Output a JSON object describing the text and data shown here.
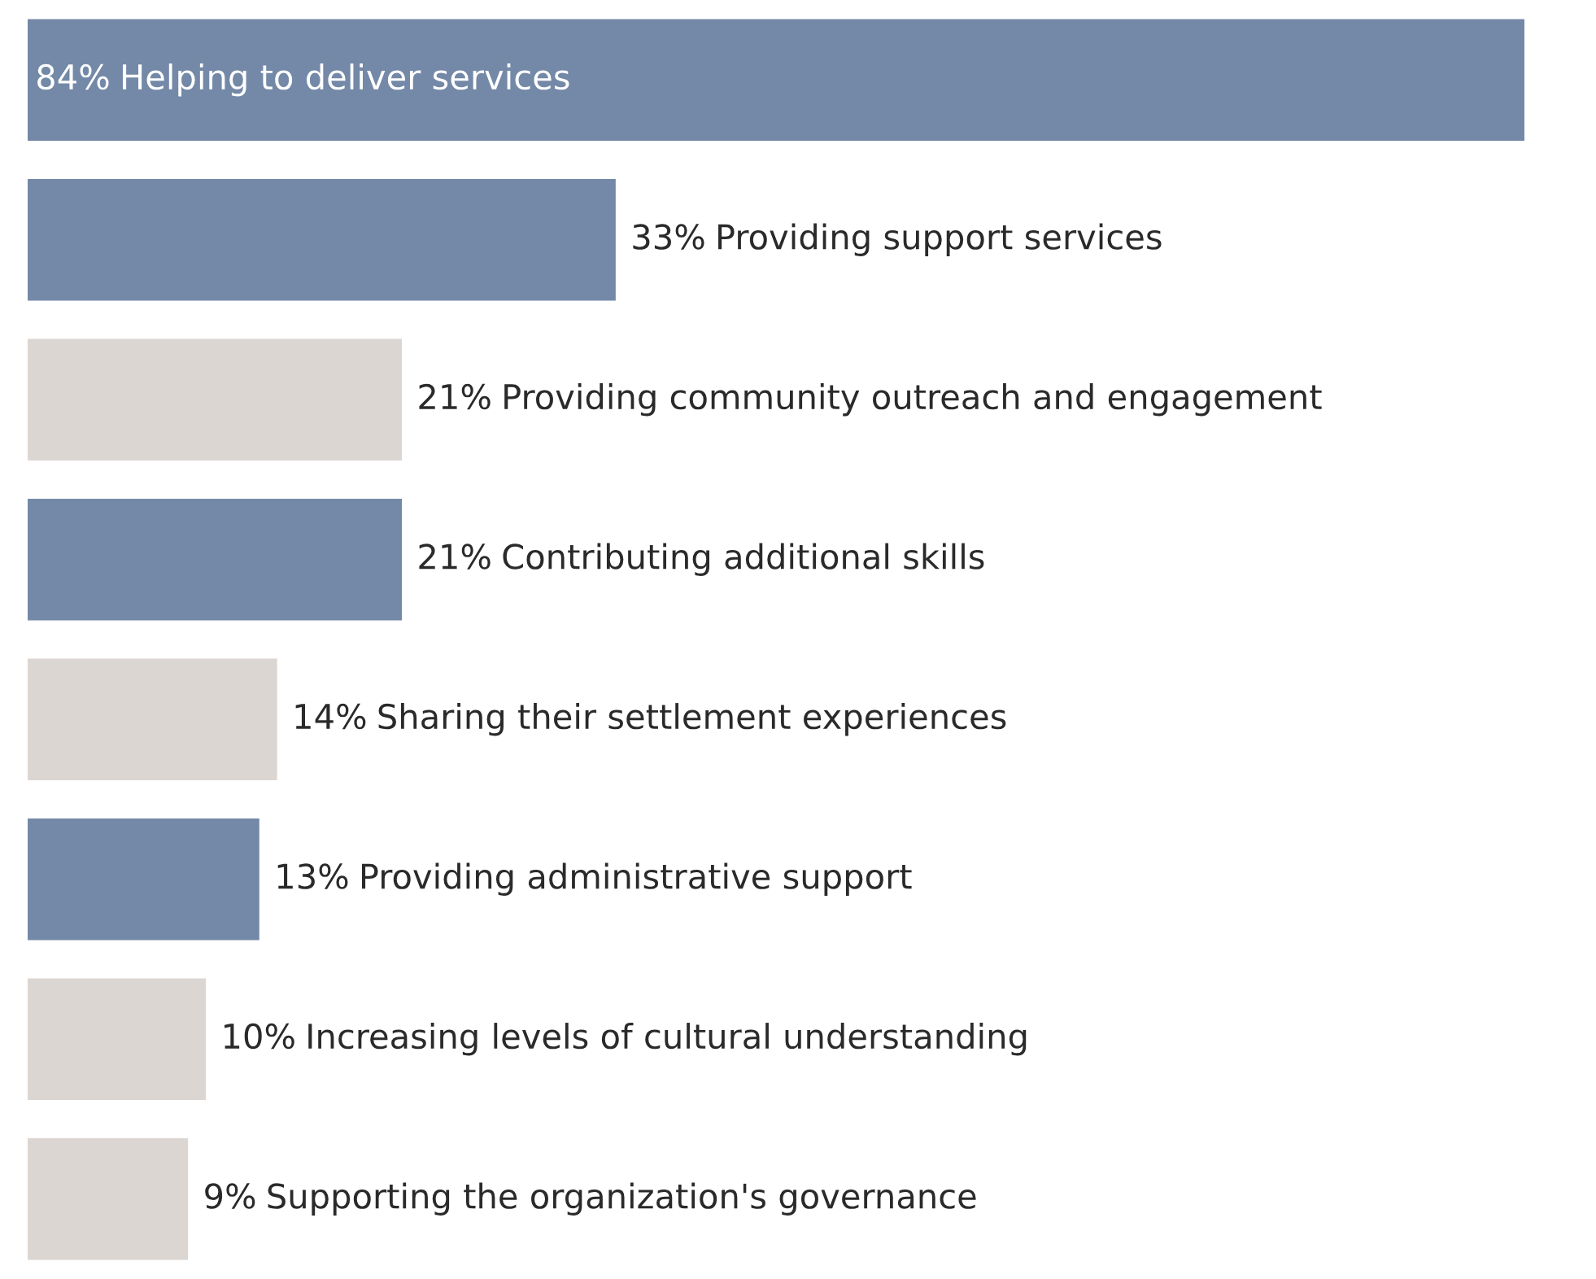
{
  "chart_data": {
    "type": "bar",
    "orientation": "horizontal",
    "categories": [
      "Helping to deliver services",
      "Providing support services",
      "Providing community outreach and engagement",
      "Contributing additional skills",
      "Sharing their settlement experiences",
      "Providing administrative support",
      "Increasing levels of cultural understanding",
      "Supporting the organization's governance"
    ],
    "values": [
      84,
      33,
      21,
      21,
      14,
      13,
      10,
      9
    ],
    "value_labels": [
      "84%",
      "33%",
      "21%",
      "21%",
      "14%",
      "13%",
      "10%",
      "9%"
    ],
    "colors": [
      "#7489a8",
      "#7489a8",
      "#dcd6d3",
      "#7489a8",
      "#dcd6d3",
      "#7489a8",
      "#dcd6d3",
      "#dcd6d3"
    ],
    "legend": false
  }
}
